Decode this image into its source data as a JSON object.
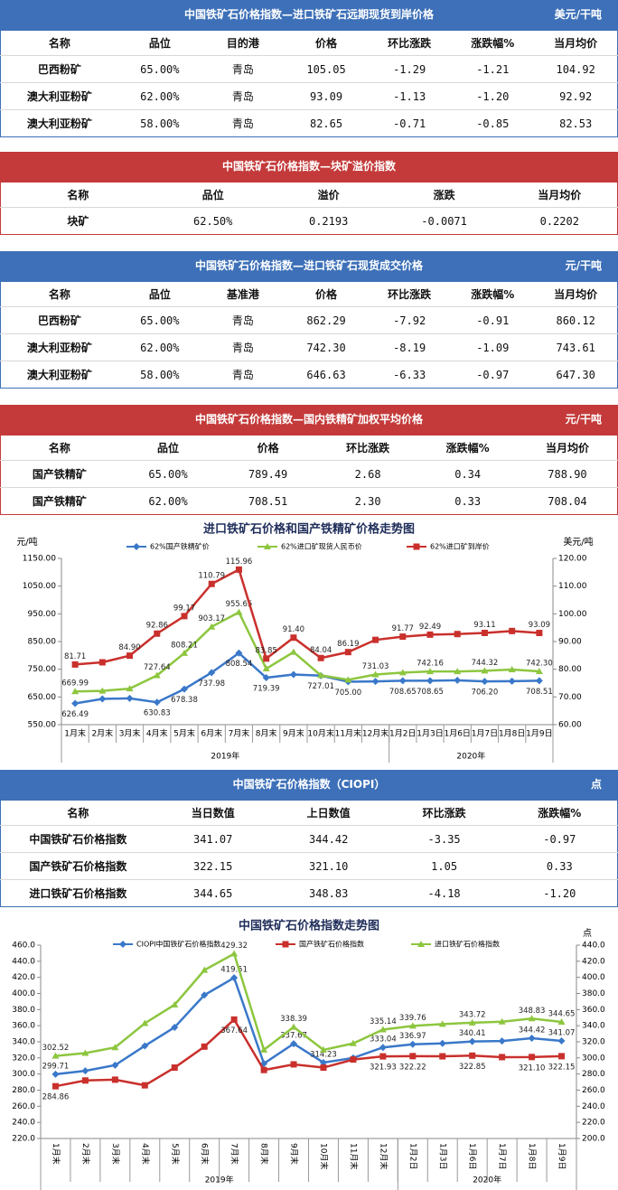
{
  "tables": [
    {
      "title": "中国铁矿石价格指数—进口铁矿石远期现货到岸价格",
      "unit": "美元/干吨",
      "color": "#3d70b8",
      "header": [
        "名称",
        "品位",
        "目的港",
        "价格",
        "环比涨跌",
        "涨跌幅%",
        "当月均价"
      ],
      "rows": [
        [
          "巴西粉矿",
          "65.00%",
          "青岛",
          "105.05",
          "-1.29",
          "-1.21",
          "104.92"
        ],
        [
          "澳大利亚粉矿",
          "62.00%",
          "青岛",
          "93.09",
          "-1.13",
          "-1.20",
          "92.92"
        ],
        [
          "澳大利亚粉矿",
          "58.00%",
          "青岛",
          "82.65",
          "-0.71",
          "-0.85",
          "82.53"
        ]
      ]
    },
    {
      "title": "中国铁矿石价格指数—块矿溢价指数",
      "color": "#c43a3a",
      "header": [
        "名称",
        "品位",
        "溢价",
        "涨跌",
        "当月均价"
      ],
      "rows": [
        [
          "块矿",
          "62.50%",
          "0.2193",
          "-0.0071",
          "0.2202"
        ]
      ]
    },
    {
      "title": "中国铁矿石价格指数—进口铁矿石现货成交价格",
      "unit": "元/干吨",
      "color": "#3d70b8",
      "header": [
        "名称",
        "品位",
        "基准港",
        "价格",
        "环比涨跌",
        "涨跌幅%",
        "当月均价"
      ],
      "rows": [
        [
          "巴西粉矿",
          "65.00%",
          "青岛",
          "862.29",
          "-7.92",
          "-0.91",
          "860.12"
        ],
        [
          "澳大利亚粉矿",
          "62.00%",
          "青岛",
          "742.30",
          "-8.19",
          "-1.09",
          "743.61"
        ],
        [
          "澳大利亚粉矿",
          "58.00%",
          "青岛",
          "646.63",
          "-6.33",
          "-0.97",
          "647.30"
        ]
      ]
    },
    {
      "title": "中国铁矿石价格指数—国内铁精矿加权平均价格",
      "unit": "元/干吨",
      "color": "#c43a3a",
      "header": [
        "名称",
        "品位",
        "价格",
        "环比涨跌",
        "涨跌幅%",
        "当月均价"
      ],
      "rows": [
        [
          "国产铁精矿",
          "65.00%",
          "789.49",
          "2.68",
          "0.34",
          "788.90"
        ],
        [
          "国产铁精矿",
          "62.00%",
          "708.51",
          "2.30",
          "0.33",
          "708.04"
        ]
      ]
    },
    {
      "title": "中国铁矿石价格指数（CIOPI）",
      "unit": "点",
      "color": "#3d70b8",
      "header": [
        "名称",
        "当日数值",
        "上日数值",
        "环比涨跌",
        "涨跌幅%"
      ],
      "rows": [
        [
          "中国铁矿石价格指数",
          "341.07",
          "344.42",
          "-3.35",
          "-0.97"
        ],
        [
          "国产铁矿石价格指数",
          "322.15",
          "321.10",
          "1.05",
          "0.33"
        ],
        [
          "进口铁矿石价格指数",
          "344.65",
          "348.83",
          "-4.18",
          "-1.20"
        ]
      ]
    }
  ],
  "chart_data": [
    {
      "type": "line",
      "title": "进口铁矿石价格和国产铁精矿价格走势图",
      "ylabel": "元/吨",
      "y2label": "美元/吨",
      "grid": false,
      "categories": [
        "1月末",
        "2月末",
        "3月末",
        "4月末",
        "5月末",
        "6月末",
        "7月末",
        "8月末",
        "9月末",
        "10月末",
        "11月末",
        "12月末",
        "1月2日",
        "1月3日",
        "1月6日",
        "1月7日",
        "1月8日",
        "1月9日"
      ],
      "x_groups": [
        "2019年",
        "2020年"
      ],
      "ylim": [
        550,
        1150
      ],
      "yticks": [
        {
          "value": 550,
          "label": "550.00"
        },
        {
          "value": 650,
          "label": "650.00"
        },
        {
          "value": 750,
          "label": "750.00"
        },
        {
          "value": 850,
          "label": "850.00"
        },
        {
          "value": 950,
          "label": "950.00"
        },
        {
          "value": 1050,
          "label": "1050.00"
        },
        {
          "value": 1150,
          "label": "1150.00"
        }
      ],
      "y2lim": [
        60,
        120
      ],
      "y2ticks": [
        {
          "value": 60,
          "label": "60.00"
        },
        {
          "value": 70,
          "label": "70.00"
        },
        {
          "value": 80,
          "label": "80.00"
        },
        {
          "value": 90,
          "label": "90.00"
        },
        {
          "value": 100,
          "label": "100.00"
        },
        {
          "value": 110,
          "label": "110.00"
        },
        {
          "value": 120,
          "label": "120.00"
        }
      ],
      "series": [
        {
          "name": "62%国产铁精矿价",
          "color": "#3a78c9",
          "marker": "diamond",
          "label_position": "below",
          "values": [
            626.49,
            643,
            645,
            630.83,
            678.38,
            737.98,
            808.54,
            719.39,
            731,
            727.01,
            705.0,
            706,
            708.65,
            708.65,
            710,
            706.2,
            707,
            708.51
          ],
          "value_labels": [
            "626.49",
            null,
            null,
            "630.83",
            "678.38",
            "737.98",
            "808.54",
            "719.39",
            null,
            "727.01",
            "705.00",
            null,
            "708.65",
            "708.65",
            null,
            "706.20",
            null,
            "708.51"
          ]
        },
        {
          "name": "62%进口矿现货人民币价",
          "color": "#8dc63f",
          "marker": "triangle",
          "label_position": "above",
          "values": [
            669.99,
            672,
            680,
            727.64,
            808.21,
            903.17,
            955.65,
            752,
            812,
            728,
            712,
            731.03,
            738,
            742.16,
            742,
            744.32,
            749,
            742.3
          ],
          "value_labels": [
            "669.99",
            null,
            null,
            "727.64",
            "808.21",
            "903.17",
            "955.65",
            null,
            null,
            null,
            null,
            "731.03",
            null,
            "742.16",
            null,
            "744.32",
            null,
            "742.30"
          ]
        },
        {
          "name": "62%进口矿到岸价",
          "color": "#c9302c",
          "marker": "square",
          "label_position": "above",
          "axis": "y2",
          "values": [
            81.71,
            82.5,
            84.9,
            92.86,
            99.17,
            110.79,
            115.96,
            83.85,
            91.4,
            84.04,
            86.19,
            90.6,
            91.77,
            92.49,
            92.7,
            93.11,
            93.8,
            93.09
          ],
          "value_labels": [
            "81.71",
            null,
            "84.90",
            "92.86",
            "99.17",
            "110.79",
            "115.96",
            "83.85",
            "91.40",
            "84.04",
            "86.19",
            null,
            "91.77",
            "92.49",
            null,
            "93.11",
            null,
            "93.09"
          ]
        }
      ]
    },
    {
      "type": "line",
      "title": "中国铁矿石价格指数走势图",
      "y2label": "点",
      "grid": false,
      "categories": [
        "1月末",
        "2月末",
        "3月末",
        "4月末",
        "5月末",
        "6月末",
        "7月末",
        "8月末",
        "9月末",
        "10月末",
        "11月末",
        "12月末",
        "1月2日",
        "1月3日",
        "1月6日",
        "1月7日",
        "1月8日",
        "1月9日"
      ],
      "x_groups": [
        "2019年",
        "2020年"
      ],
      "ylim": [
        220,
        460
      ],
      "yticks": [
        {
          "value": 220,
          "label": "220.0"
        },
        {
          "value": 240,
          "label": "240.0"
        },
        {
          "value": 260,
          "label": "260.0"
        },
        {
          "value": 280,
          "label": "280.0"
        },
        {
          "value": 300,
          "label": "300.0"
        },
        {
          "value": 320,
          "label": "320.0"
        },
        {
          "value": 340,
          "label": "340.0"
        },
        {
          "value": 360,
          "label": "360.0"
        },
        {
          "value": 380,
          "label": "380.0"
        },
        {
          "value": 400,
          "label": "400.0"
        },
        {
          "value": 420,
          "label": "420.0"
        },
        {
          "value": 440,
          "label": "440.0"
        },
        {
          "value": 460,
          "label": "460.0"
        }
      ],
      "y2lim": [
        200,
        440
      ],
      "y2ticks": [
        {
          "value": 200,
          "label": "200.0"
        },
        {
          "value": 220,
          "label": "220.0"
        },
        {
          "value": 240,
          "label": "240.0"
        },
        {
          "value": 260,
          "label": "260.0"
        },
        {
          "value": 280,
          "label": "280.0"
        },
        {
          "value": 300,
          "label": "300.0"
        },
        {
          "value": 320,
          "label": "320.0"
        },
        {
          "value": 340,
          "label": "340.0"
        },
        {
          "value": 360,
          "label": "360.0"
        },
        {
          "value": 380,
          "label": "380.0"
        },
        {
          "value": 400,
          "label": "400.0"
        },
        {
          "value": 420,
          "label": "420.0"
        },
        {
          "value": 440,
          "label": "440.0"
        }
      ],
      "series": [
        {
          "name": "CIOPI中国铁矿石价格指数",
          "color": "#3a78c9",
          "marker": "diamond",
          "label_position": "above",
          "values": [
            299.71,
            304,
            311,
            335,
            358,
            398,
            419.51,
            313,
            337.67,
            314.23,
            320,
            333.04,
            336.97,
            338,
            340.41,
            341,
            344.42,
            341.07
          ],
          "value_labels": [
            "299.71",
            null,
            null,
            null,
            null,
            null,
            "419.51",
            null,
            "337.67",
            "314.23",
            null,
            "333.04",
            "336.97",
            null,
            "340.41",
            null,
            "344.42",
            "341.07"
          ]
        },
        {
          "name": "国产铁矿石价格指数",
          "color": "#c9302c",
          "marker": "square",
          "label_position": "below",
          "values": [
            284.86,
            292,
            293,
            286,
            308,
            334,
            367.64,
            305,
            312,
            308,
            318,
            321.93,
            322.22,
            322,
            322.85,
            321,
            321.1,
            322.15
          ],
          "value_labels": [
            "284.86",
            null,
            null,
            null,
            null,
            null,
            "367.64",
            null,
            null,
            null,
            null,
            "321.93",
            "322.22",
            null,
            "322.85",
            null,
            "321.10",
            "322.15"
          ]
        },
        {
          "name": "进口铁矿石价格指数",
          "color": "#8dc63f",
          "marker": "triangle",
          "label_position": "above",
          "axis": "y2",
          "values": [
            302.52,
            306,
            313,
            343,
            366,
            409,
            429.32,
            310,
            338.39,
            310,
            318,
            335.14,
            339.76,
            342,
            343.72,
            345,
            348.83,
            344.65
          ],
          "value_labels": [
            "302.52",
            null,
            null,
            null,
            null,
            null,
            "429.32",
            null,
            "338.39",
            null,
            null,
            "335.14",
            "339.76",
            null,
            "343.72",
            null,
            "348.83",
            "344.65"
          ]
        }
      ]
    }
  ]
}
